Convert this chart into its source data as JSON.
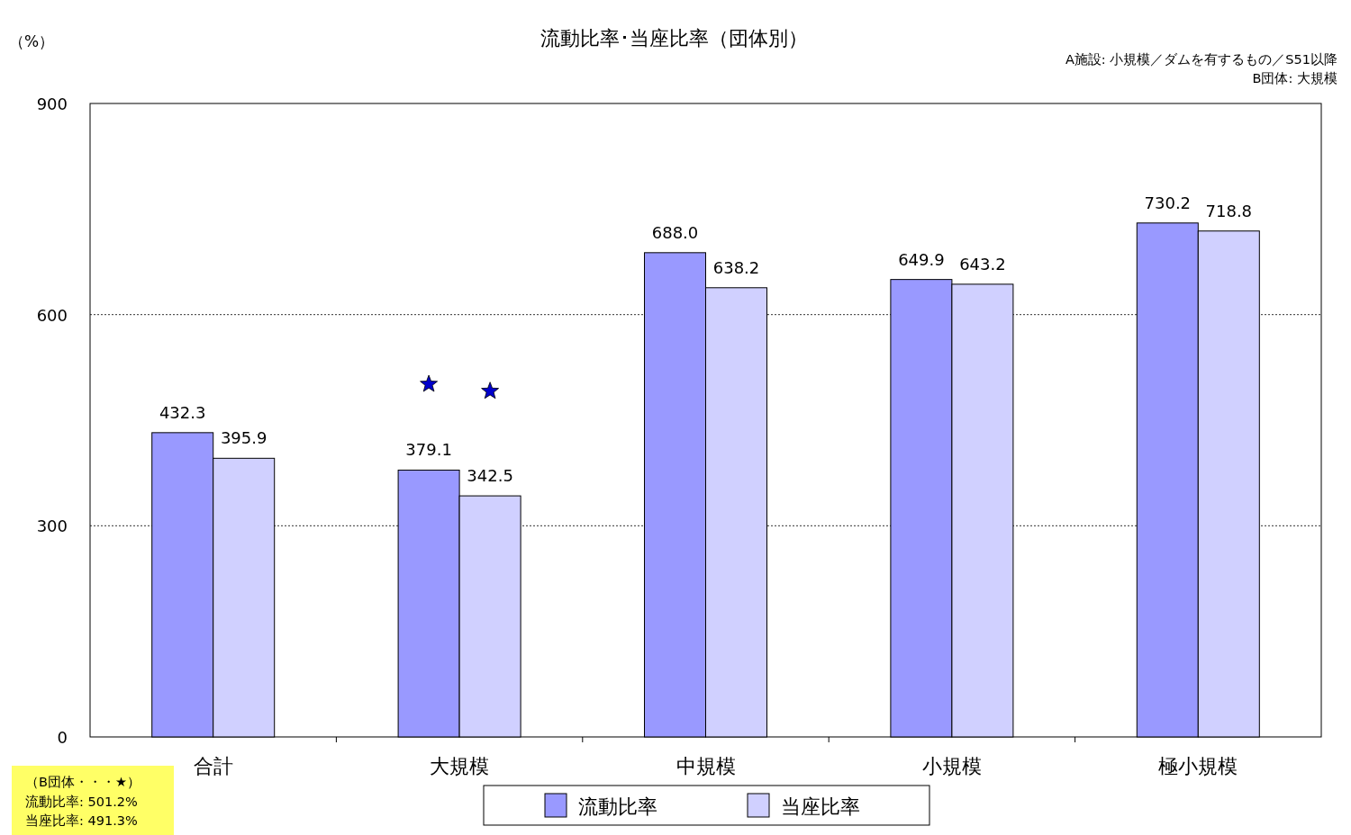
{
  "chart_data": {
    "type": "bar",
    "title": "流動比率･当座比率（団体別）",
    "ylabel": "（%）",
    "categories": [
      "合計",
      "大規模",
      "中規模",
      "小規模",
      "極小規模"
    ],
    "series": [
      {
        "name": "流動比率",
        "color": "#9999ff",
        "values": [
          432.3,
          379.1,
          688.0,
          649.9,
          730.2
        ],
        "value_labels": [
          "432.3",
          "379.1",
          "688.0",
          "649.9",
          "730.2"
        ]
      },
      {
        "name": "当座比率",
        "color": "#d0d0ff",
        "values": [
          395.9,
          342.5,
          638.2,
          643.2,
          718.8
        ],
        "value_labels": [
          "395.9",
          "342.5",
          "638.2",
          "643.2",
          "718.8"
        ]
      },
      {
        "type": "scatter",
        "marker": "star",
        "color": "#0000cc",
        "x": [
          "大規模"
        ],
        "values": [
          501.2
        ]
      },
      {
        "type": "scatter",
        "marker": "star",
        "color": "#0000cc",
        "x": [
          "大規模"
        ],
        "values": [
          491.3
        ]
      }
    ],
    "ylim": [
      0,
      900
    ],
    "yticks": [
      0,
      300,
      600,
      900
    ],
    "grid": "y",
    "legend": "bottom",
    "annotations": [
      "A施設: 小規模／ダムを有するもの／S51以降",
      "B団体: 大規模",
      "（B団体・・・★）",
      "流動比率: 501.2%",
      "当座比率: 491.3%"
    ]
  }
}
